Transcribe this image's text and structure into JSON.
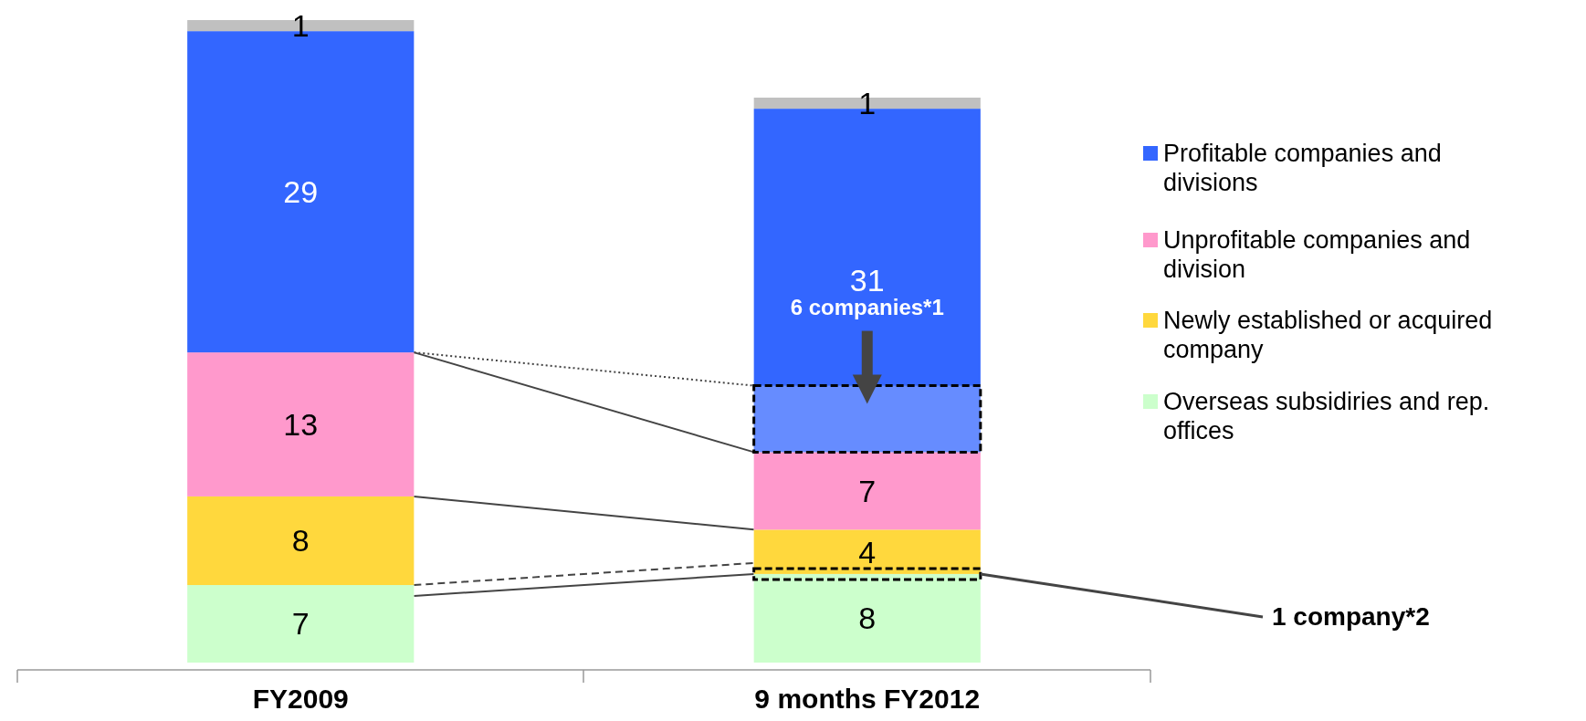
{
  "chart_data": {
    "type": "bar",
    "stacked": true,
    "data_labels": true,
    "legend": "right",
    "categories": [
      "FY2009",
      "9 months FY2012"
    ],
    "series": [
      {
        "name": "Overseas subsidiries and rep. offices",
        "color": "#ccffcc",
        "values": [
          7,
          8
        ]
      },
      {
        "name": "Newly established or acquired company",
        "color": "#ffd83d",
        "values": [
          8,
          4
        ]
      },
      {
        "name": "Unprofitable companies and division",
        "color": "#ff99cc",
        "values": [
          13,
          7
        ]
      },
      {
        "name": "Profitable companies and divisions",
        "color": "#3366ff",
        "values": [
          29,
          31
        ]
      },
      {
        "color": "#c0c0c0",
        "values": [
          1,
          1
        ]
      }
    ],
    "annotations": [
      "6 companies*1",
      "1 company*2"
    ]
  }
}
